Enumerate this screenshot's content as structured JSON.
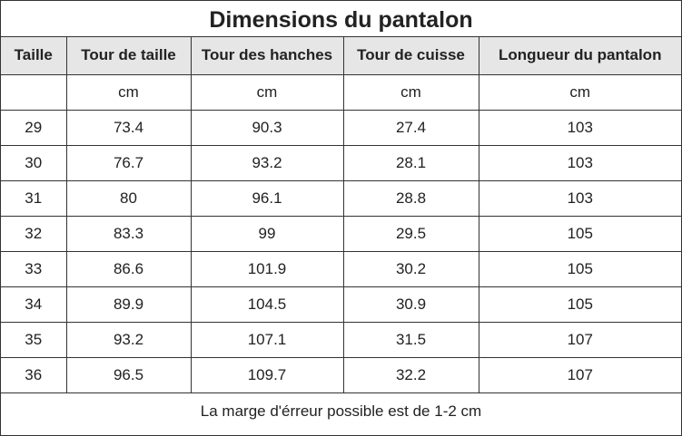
{
  "title": "Dimensions du pantalon",
  "table": {
    "header": [
      "Taille",
      "Tour de taille",
      "Tour des hanches",
      "Tour de cuisse",
      "Longueur du pantalon"
    ],
    "units": [
      "cm",
      "cm",
      "cm",
      "cm"
    ],
    "rows": [
      [
        29,
        73.4,
        90.3,
        27.4,
        103
      ],
      [
        30,
        76.7,
        93.2,
        28.1,
        103
      ],
      [
        31,
        80,
        96.1,
        28.8,
        103
      ],
      [
        32,
        83.3,
        99,
        29.5,
        105
      ],
      [
        33,
        86.6,
        101.9,
        30.2,
        105
      ],
      [
        34,
        89.9,
        104.5,
        30.9,
        105
      ],
      [
        35,
        93.2,
        107.1,
        31.5,
        107
      ],
      [
        36,
        96.5,
        109.7,
        32.2,
        107
      ]
    ]
  },
  "footer": "La marge d'érreur possible est de 1-2 cm"
}
